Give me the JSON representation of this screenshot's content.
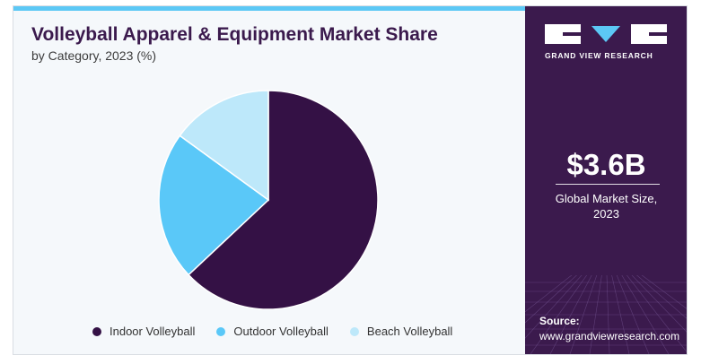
{
  "header": {
    "title": "Volleyball Apparel & Equipment Market Share",
    "subtitle": "by Category, 2023 (%)"
  },
  "chart_data": {
    "type": "pie",
    "title": "Volleyball Apparel & Equipment Market Share",
    "subtitle": "by Category, 2023 (%)",
    "slices": [
      {
        "label": "Indoor Volleyball",
        "value": 63,
        "color": "#341145"
      },
      {
        "label": "Outdoor Volleyball",
        "value": 22,
        "color": "#5ac8f8"
      },
      {
        "label": "Beach Volleyball",
        "value": 15,
        "color": "#bde8fa"
      }
    ],
    "start_angle_deg": 0,
    "direction": "clockwise",
    "legend_position": "bottom"
  },
  "legend": {
    "items": [
      {
        "label": "Indoor Volleyball",
        "color": "#341145"
      },
      {
        "label": "Outdoor Volleyball",
        "color": "#5ac8f8"
      },
      {
        "label": "Beach Volleyball",
        "color": "#bde8fa"
      }
    ]
  },
  "sidebar": {
    "brand": "GRAND VIEW RESEARCH",
    "market_size": "$3.6B",
    "market_label_line1": "Global Market Size,",
    "market_label_line2": "2023",
    "source_label": "Source:",
    "source_url": "www.grandviewresearch.com",
    "background_color": "#3b1a4d"
  },
  "colors": {
    "accent": "#5cc8f5",
    "panel_bg": "#f5f8fb"
  }
}
